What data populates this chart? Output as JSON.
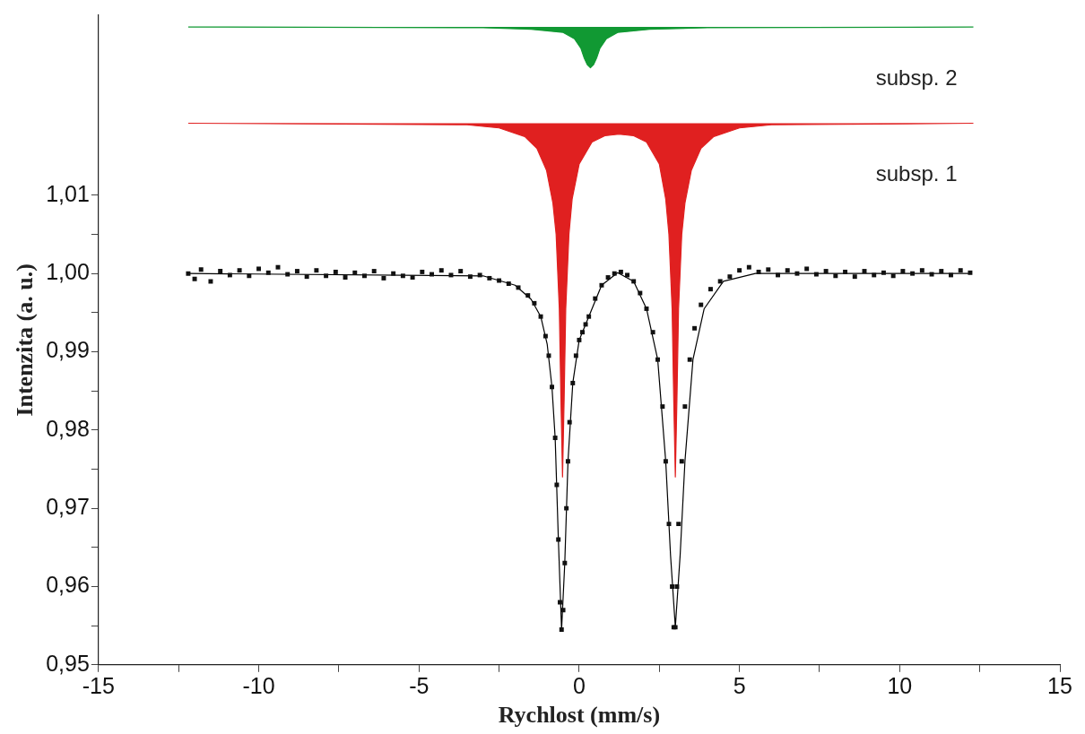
{
  "chart_data": {
    "type": "scatter",
    "xlabel": "Rychlost (mm/s)",
    "ylabel": "Intenzita (a. u.)",
    "xlim": [
      -15,
      15
    ],
    "xticks": [
      -15,
      {
        "value": -12.5,
        "label": null
      },
      -10,
      {
        "value": -7.5,
        "label": null
      },
      -5,
      {
        "value": -2.5,
        "label": null
      },
      0,
      {
        "value": 2.5,
        "label": null
      },
      5,
      {
        "value": 7.5,
        "label": null
      },
      10,
      {
        "value": 12.5,
        "label": null
      },
      15
    ],
    "ylim": [
      0.95,
      1.033
    ],
    "yticks": [
      {
        "value": 0.95,
        "label": "0,95"
      },
      {
        "value": 0.955,
        "label": null
      },
      {
        "value": 0.96,
        "label": "0,96"
      },
      {
        "value": 0.965,
        "label": null
      },
      {
        "value": 0.97,
        "label": "0,97"
      },
      {
        "value": 0.975,
        "label": null
      },
      {
        "value": 0.98,
        "label": "0,98"
      },
      {
        "value": 0.985,
        "label": null
      },
      {
        "value": 0.99,
        "label": "0,99"
      },
      {
        "value": 0.995,
        "label": null
      },
      {
        "value": 1.0,
        "label": "1,00"
      },
      {
        "value": 1.005,
        "label": null
      },
      {
        "value": 1.01,
        "label": "1,01"
      }
    ],
    "grid": false,
    "legend": false,
    "series": [
      {
        "type": "area",
        "name": "subsp. 2",
        "color": "#119933",
        "x": [
          -12.2,
          -3.0,
          -1.5,
          -0.5,
          -0.15,
          0.05,
          0.15,
          0.25,
          0.35,
          0.45,
          0.55,
          0.65,
          0.85,
          1.2,
          2.2,
          4.0,
          12.3
        ],
        "values": [
          1.0315,
          1.0314,
          1.0312,
          1.0308,
          1.03,
          1.0288,
          1.0276,
          1.0267,
          1.0263,
          1.0267,
          1.0276,
          1.0288,
          1.03,
          1.0308,
          1.0312,
          1.0314,
          1.0315
        ]
      },
      {
        "type": "area",
        "name": "subsp. 1",
        "color": "#e02020",
        "x": [
          -12.2,
          -3.5,
          -2.5,
          -1.7,
          -1.32,
          -1.02,
          -0.82,
          -0.72,
          -0.62,
          -0.57,
          -0.52,
          -0.47,
          -0.42,
          -0.32,
          -0.22,
          0.0,
          0.4,
          0.8,
          1.24,
          1.7,
          2.1,
          2.5,
          2.7,
          2.8,
          2.9,
          2.95,
          3.0,
          3.05,
          3.1,
          3.2,
          3.3,
          3.5,
          3.8,
          4.2,
          5.0,
          6.0,
          12.3
        ],
        "values": [
          1.0192,
          1.019,
          1.0186,
          1.0175,
          1.016,
          1.0132,
          1.009,
          1.005,
          0.9955,
          0.984,
          0.974,
          0.984,
          0.9955,
          1.005,
          1.0095,
          1.014,
          1.0168,
          1.0176,
          1.0178,
          1.0176,
          1.0168,
          1.014,
          1.0095,
          1.005,
          0.9955,
          0.984,
          0.974,
          0.984,
          0.9955,
          1.005,
          1.009,
          1.0132,
          1.016,
          1.0175,
          1.0186,
          1.019,
          1.0192
        ]
      },
      {
        "type": "line",
        "color": "#000000",
        "x": [
          -12.2,
          -3,
          -2,
          -1.5,
          -1.2,
          -1,
          -0.85,
          -0.75,
          -0.65,
          -0.55,
          -0.45,
          -0.35,
          -0.2,
          0,
          0.3,
          0.7,
          1.2,
          1.7,
          2.1,
          2.45,
          2.7,
          2.85,
          3.0,
          3.15,
          3.3,
          3.55,
          3.9,
          4.5,
          5.5,
          12.2
        ],
        "values": [
          1.0,
          0.9997,
          0.9985,
          0.9967,
          0.9945,
          0.991,
          0.9855,
          0.979,
          0.966,
          0.9545,
          0.963,
          0.976,
          0.986,
          0.9915,
          0.9945,
          0.9985,
          1.0001,
          0.999,
          0.9955,
          0.989,
          0.976,
          0.964,
          0.9548,
          0.964,
          0.976,
          0.989,
          0.9955,
          0.999,
          1.0,
          1.0
        ]
      },
      {
        "marker": "square",
        "color": "#111111",
        "x": [
          -12.2,
          -12.0,
          -11.8,
          -11.5,
          -11.2,
          -10.9,
          -10.6,
          -10.3,
          -10.0,
          -9.7,
          -9.4,
          -9.1,
          -8.8,
          -8.5,
          -8.2,
          -7.9,
          -7.6,
          -7.3,
          -7.0,
          -6.7,
          -6.4,
          -6.1,
          -5.8,
          -5.5,
          -5.2,
          -4.9,
          -4.6,
          -4.3,
          -4.0,
          -3.7,
          -3.4,
          -3.1,
          -2.8,
          -2.5,
          -2.2,
          -1.9,
          -1.6,
          -1.4,
          -1.2,
          -1.05,
          -0.95,
          -0.85,
          -0.75,
          -0.7,
          -0.65,
          -0.6,
          -0.55,
          -0.5,
          -0.45,
          -0.4,
          -0.35,
          -0.3,
          -0.2,
          -0.1,
          0.0,
          0.1,
          0.2,
          0.3,
          0.5,
          0.7,
          0.9,
          1.1,
          1.3,
          1.5,
          1.7,
          1.9,
          2.1,
          2.3,
          2.45,
          2.6,
          2.7,
          2.8,
          2.9,
          2.95,
          3.0,
          3.05,
          3.1,
          3.2,
          3.3,
          3.45,
          3.6,
          3.8,
          4.1,
          4.4,
          4.7,
          5.0,
          5.3,
          5.6,
          5.9,
          6.2,
          6.5,
          6.8,
          7.1,
          7.4,
          7.7,
          8.0,
          8.3,
          8.6,
          8.9,
          9.2,
          9.5,
          9.8,
          10.1,
          10.4,
          10.7,
          11.0,
          11.3,
          11.6,
          11.9,
          12.2
        ],
        "values": [
          1.0,
          0.9993,
          1.0005,
          0.999,
          1.0003,
          0.9998,
          1.0004,
          0.9997,
          1.0006,
          1.0001,
          1.0008,
          0.9999,
          1.0003,
          0.9996,
          1.0004,
          0.9997,
          1.0002,
          0.9995,
          1.0001,
          0.9997,
          1.0003,
          0.9994,
          1.0,
          0.9997,
          0.9995,
          1.0002,
          0.9999,
          1.0004,
          0.9998,
          1.0003,
          0.9996,
          0.9998,
          0.9994,
          0.9991,
          0.9987,
          0.9982,
          0.9972,
          0.9962,
          0.9945,
          0.992,
          0.9895,
          0.9855,
          0.979,
          0.973,
          0.966,
          0.958,
          0.9545,
          0.957,
          0.963,
          0.97,
          0.976,
          0.981,
          0.986,
          0.9895,
          0.9915,
          0.9925,
          0.9935,
          0.9945,
          0.9968,
          0.9985,
          0.9995,
          1.0,
          1.0002,
          0.9998,
          0.999,
          0.9975,
          0.9955,
          0.9925,
          0.989,
          0.983,
          0.976,
          0.968,
          0.96,
          0.9548,
          0.9548,
          0.96,
          0.968,
          0.976,
          0.983,
          0.989,
          0.993,
          0.996,
          0.998,
          0.999,
          0.9996,
          1.0004,
          1.0008,
          1.0002,
          1.0005,
          0.9998,
          1.0004,
          1.0,
          1.0006,
          0.9999,
          1.0003,
          0.9997,
          1.0002,
          0.9996,
          1.0003,
          0.9998,
          1.0001,
          0.9997,
          1.0003,
          1.0,
          1.0004,
          0.9999,
          1.0003,
          0.9998,
          1.0004,
          1.0001
        ]
      }
    ]
  }
}
